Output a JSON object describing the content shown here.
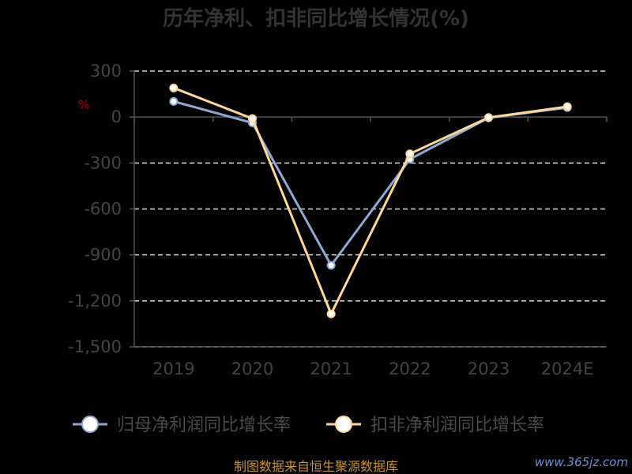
{
  "chart_data": {
    "type": "line",
    "title": "历年净利、扣非同比增长情况(%)",
    "unit": "%",
    "categories": [
      "2019",
      "2020",
      "2021",
      "2022",
      "2023",
      "2024E"
    ],
    "y_ticks": [
      "300",
      "0",
      "-300",
      "-600",
      "-900",
      "-1,200",
      "-1,500"
    ],
    "ylim": [
      -1500,
      300
    ],
    "grid": true,
    "legend_position": "bottom",
    "series": [
      {
        "name": "归母净利润同比增长率",
        "color": "#8fa9d4",
        "values": [
          102,
          -38,
          -968,
          -275,
          -5,
          62
        ]
      },
      {
        "name": "扣非净利润同比增长率",
        "color": "#ffd699",
        "values": [
          190,
          -10,
          -1285,
          -240,
          -3,
          68
        ]
      }
    ]
  },
  "footer": {
    "source": "制图数据来自恒生聚源数据库",
    "watermark": "www.365jz.com"
  }
}
